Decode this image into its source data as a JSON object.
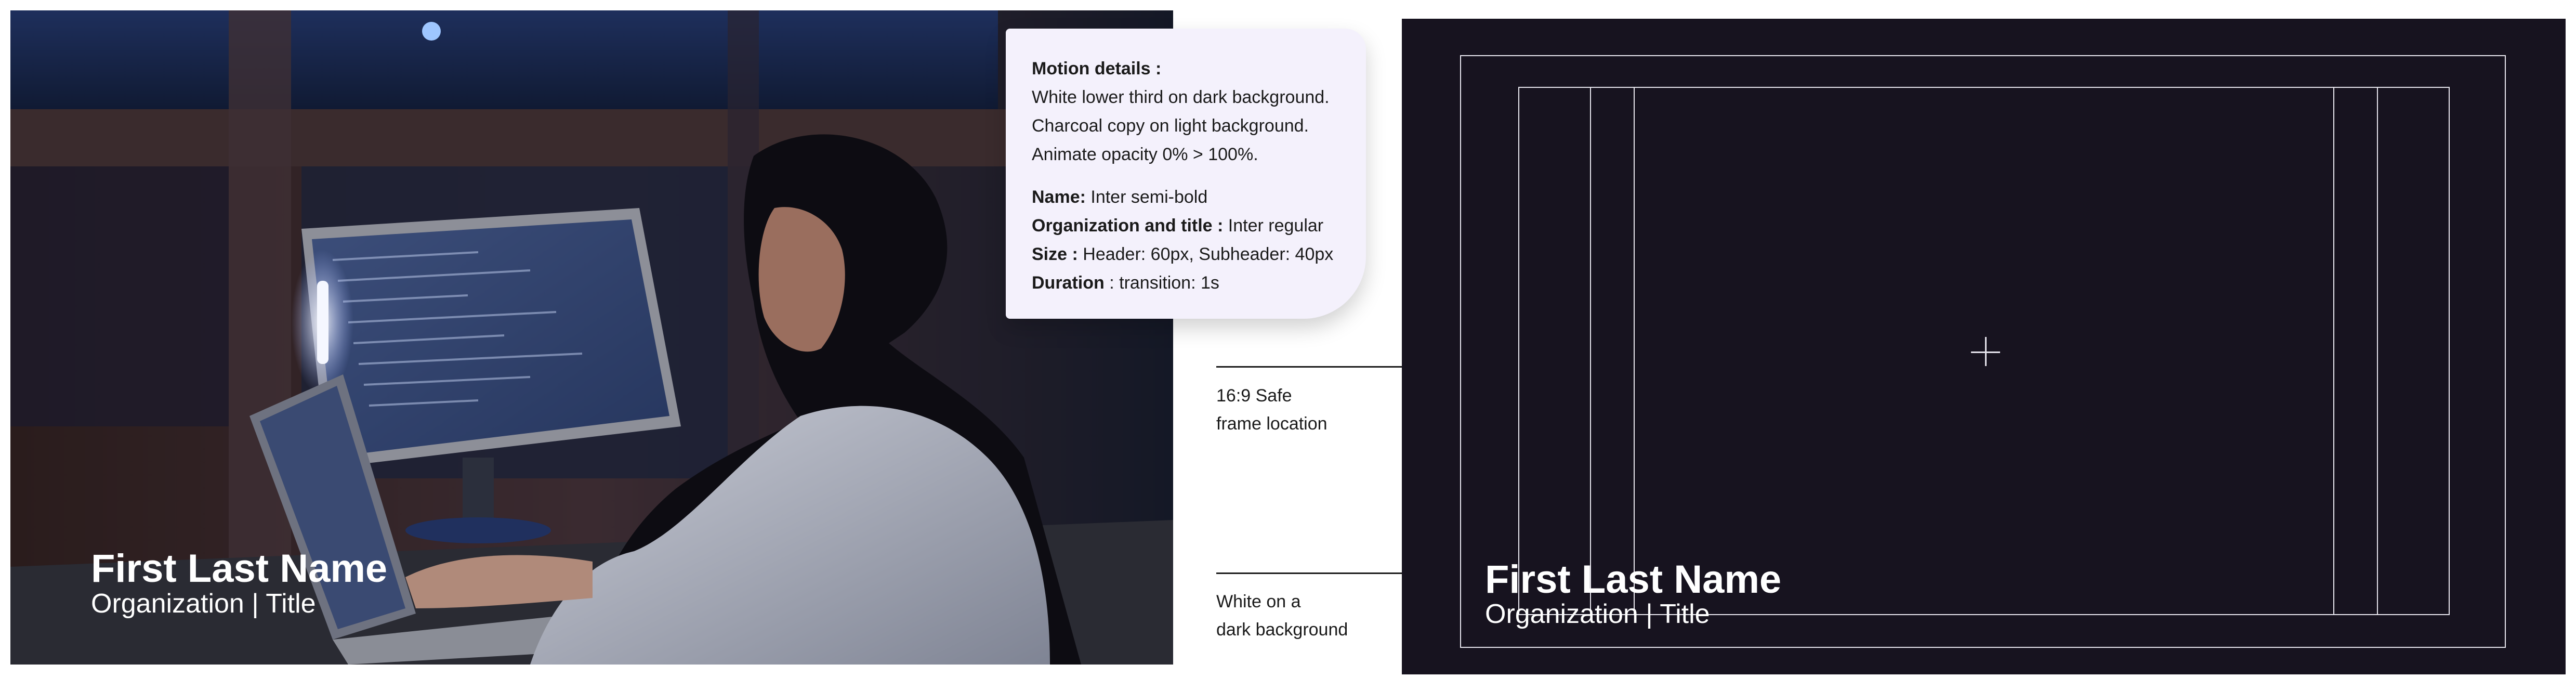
{
  "photo_panel": {
    "lower_third": {
      "name": "First Last Name",
      "org_title": "Organization | Title"
    }
  },
  "motion_details": {
    "heading": "Motion details :",
    "lines": [
      "White lower third on dark background.",
      "Charcoal copy on light background.",
      "Animate opacity 0% > 100%."
    ],
    "specs": [
      {
        "label": "Name:",
        "value": " Inter semi-bold"
      },
      {
        "label": "Organization and title :",
        "value": " Inter regular"
      },
      {
        "label": "Size :",
        "value": " Header: 60px, Subheader: 40px"
      },
      {
        "label": "Duration",
        "value": " : transition: 1s"
      }
    ]
  },
  "callouts": {
    "safe_frame": [
      "16:9 Safe",
      "frame location"
    ],
    "background": [
      "White on a",
      "dark background"
    ]
  },
  "frame_panel": {
    "lower_third": {
      "name": "First Last Name",
      "org_title": "Organization | Title"
    }
  },
  "colors": {
    "dark_frame": "#17131f",
    "card_background": "#f4f1fc",
    "text_white": "#ffffff",
    "text_charcoal": "#1a1a1a"
  }
}
